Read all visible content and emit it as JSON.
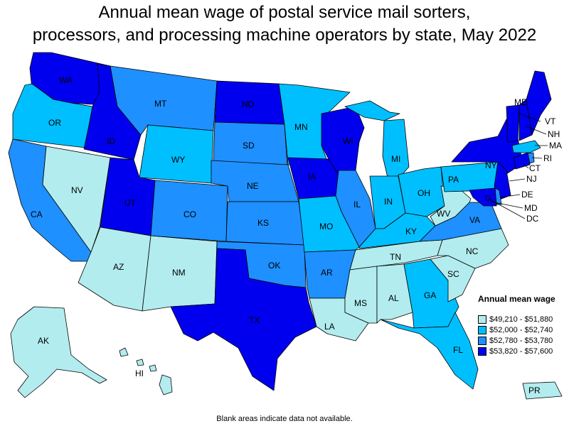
{
  "title_line1": "Annual mean wage of postal service mail sorters,",
  "title_line2": "processors, and processing machine operators by state, May 2022",
  "legend": {
    "title": "Annual mean wage",
    "items": [
      {
        "label": "$49,210 - $51,880",
        "color": "#b2ecee"
      },
      {
        "label": "$52,000 - $52,740",
        "color": "#00bfff"
      },
      {
        "label": "$52,780 - $53,780",
        "color": "#1e90ff"
      },
      {
        "label": "$53,820 - $57,600",
        "color": "#0000ee"
      }
    ]
  },
  "footnote": "Blank areas indicate data not available.",
  "states": {
    "WA": 3,
    "OR": 1,
    "CA": 2,
    "NV": 0,
    "ID": 3,
    "MT": 2,
    "WY": 1,
    "UT": 3,
    "AZ": 0,
    "NM": 0,
    "CO": 2,
    "ND": 3,
    "SD": 2,
    "NE": 2,
    "KS": 2,
    "OK": 2,
    "TX": 3,
    "MN": 1,
    "IA": 3,
    "MO": 1,
    "AR": 2,
    "LA": 0,
    "WI": 3,
    "IL": 2,
    "MI": 1,
    "IN": 1,
    "OH": 1,
    "KY": 1,
    "TN": 0,
    "MS": 0,
    "AL": 0,
    "GA": 1,
    "FL": 1,
    "SC": 0,
    "NC": 0,
    "VA": 2,
    "WV": 0,
    "PA": 1,
    "NY": 3,
    "VT": 3,
    "NH": 3,
    "ME": 3,
    "MA": 1,
    "RI": 2,
    "CT": 3,
    "NJ": 3,
    "DE": 2,
    "MD": 3,
    "DC": 3,
    "AK": 0,
    "HI": 0,
    "PR": 0
  }
}
